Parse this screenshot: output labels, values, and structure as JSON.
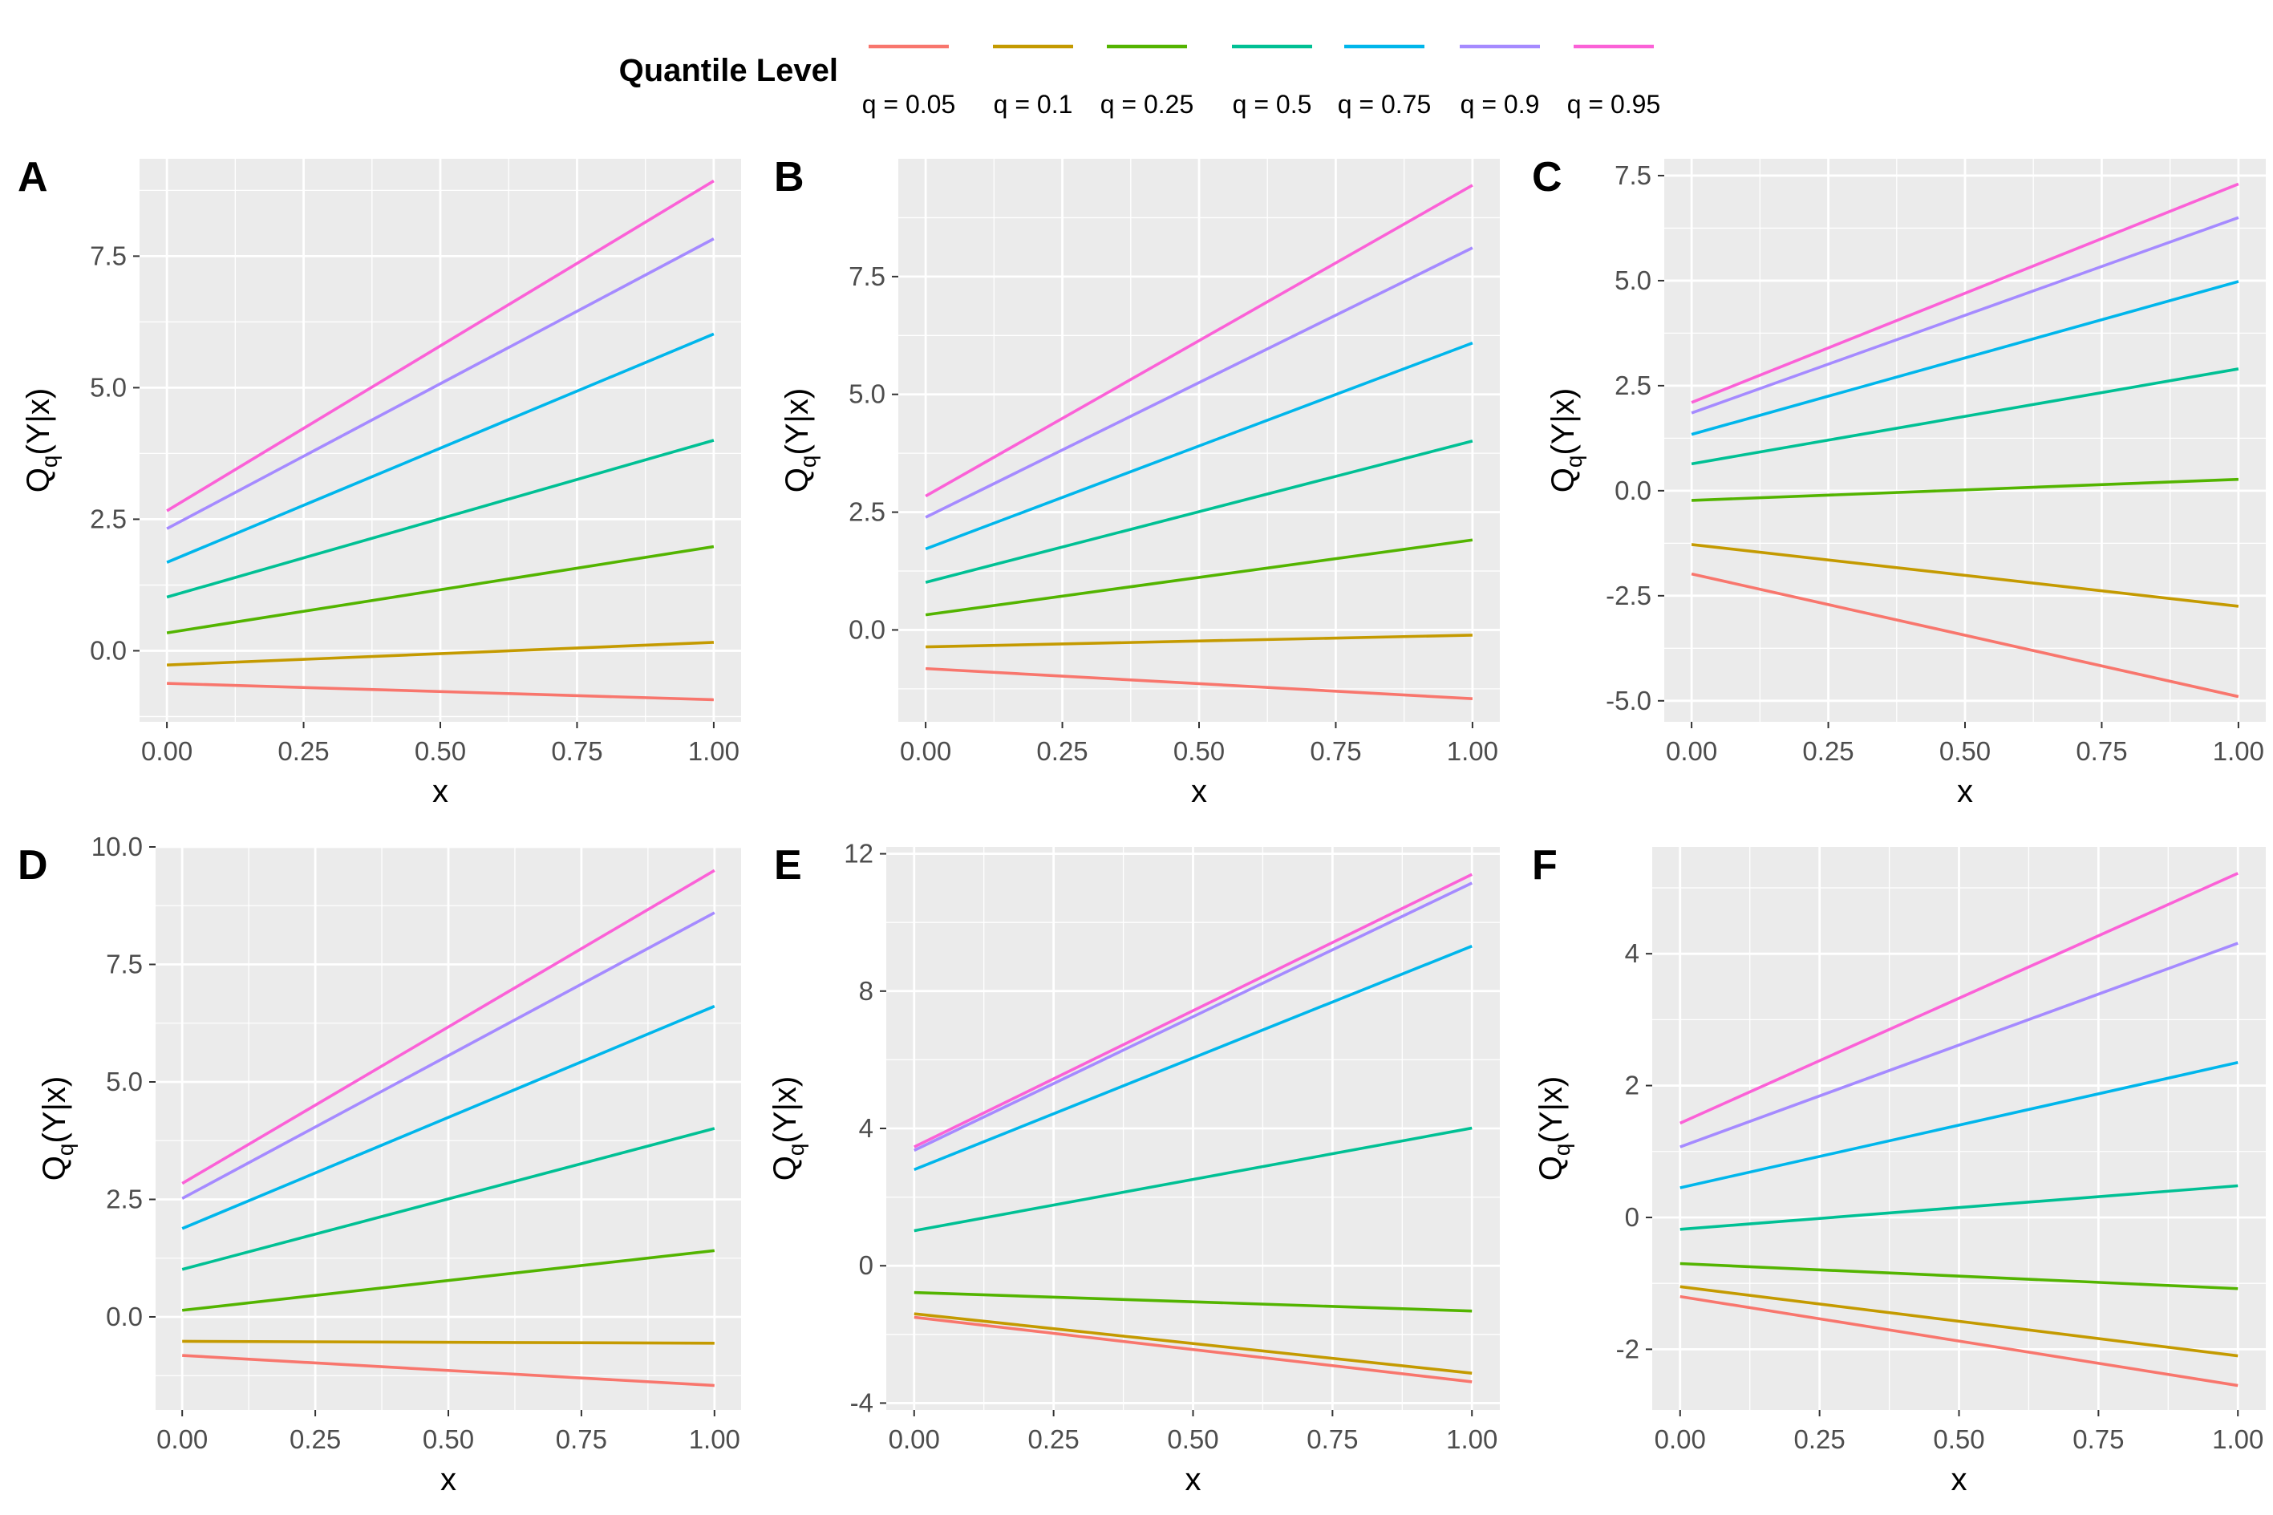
{
  "legend": {
    "title": "Quantile Level",
    "entries": [
      {
        "label": "q = 0.05",
        "color": "#F8766D"
      },
      {
        "label": "q = 0.1",
        "color": "#C49A00"
      },
      {
        "label": "q = 0.25",
        "color": "#53B400"
      },
      {
        "label": "q = 0.5",
        "color": "#00C094"
      },
      {
        "label": "q = 0.75",
        "color": "#00B6EB"
      },
      {
        "label": "q = 0.9",
        "color": "#A58AFF"
      },
      {
        "label": "q = 0.95",
        "color": "#FB61D7"
      }
    ]
  },
  "chart_data": [
    {
      "panel": "A",
      "type": "line",
      "xlabel": "x",
      "ylabel_main": "Q",
      "ylabel_sub": "q",
      "ylabel_rest": "(Y|x)",
      "xlim": [
        -0.05,
        1.05
      ],
      "ylim": [
        -1.35,
        9.35
      ],
      "xticks": [
        0,
        0.25,
        0.5,
        0.75,
        1
      ],
      "xtick_labels": [
        "0.00",
        "0.25",
        "0.50",
        "0.75",
        "1.00"
      ],
      "yticks": [
        0,
        2.5,
        5,
        7.5
      ],
      "ytick_labels": [
        "0.0",
        "2.5",
        "5.0",
        "7.5"
      ],
      "grid": true,
      "series": [
        {
          "name": "q = 0.05",
          "x": [
            0,
            1
          ],
          "y": [
            -0.62,
            -0.93
          ]
        },
        {
          "name": "q = 0.1",
          "x": [
            0,
            1
          ],
          "y": [
            -0.27,
            0.16
          ]
        },
        {
          "name": "q = 0.25",
          "x": [
            0,
            1
          ],
          "y": [
            0.34,
            1.98
          ]
        },
        {
          "name": "q = 0.5",
          "x": [
            0,
            1
          ],
          "y": [
            1.02,
            4.0
          ]
        },
        {
          "name": "q = 0.75",
          "x": [
            0,
            1
          ],
          "y": [
            1.68,
            6.02
          ]
        },
        {
          "name": "q = 0.9",
          "x": [
            0,
            1
          ],
          "y": [
            2.32,
            7.83
          ]
        },
        {
          "name": "q = 0.95",
          "x": [
            0,
            1
          ],
          "y": [
            2.66,
            8.93
          ]
        }
      ]
    },
    {
      "panel": "B",
      "type": "line",
      "xlabel": "x",
      "ylabel_main": "Q",
      "ylabel_sub": "q",
      "ylabel_rest": "(Y|x)",
      "xlim": [
        -0.05,
        1.05
      ],
      "ylim": [
        -1.95,
        10.0
      ],
      "xticks": [
        0,
        0.25,
        0.5,
        0.75,
        1
      ],
      "xtick_labels": [
        "0.00",
        "0.25",
        "0.50",
        "0.75",
        "1.00"
      ],
      "yticks": [
        0,
        2.5,
        5,
        7.5
      ],
      "ytick_labels": [
        "0.0",
        "2.5",
        "5.0",
        "7.5"
      ],
      "grid": true,
      "series": [
        {
          "name": "q = 0.05",
          "x": [
            0,
            1
          ],
          "y": [
            -0.82,
            -1.46
          ]
        },
        {
          "name": "q = 0.1",
          "x": [
            0,
            1
          ],
          "y": [
            -0.36,
            -0.11
          ]
        },
        {
          "name": "q = 0.25",
          "x": [
            0,
            1
          ],
          "y": [
            0.32,
            1.91
          ]
        },
        {
          "name": "q = 0.5",
          "x": [
            0,
            1
          ],
          "y": [
            1.01,
            4.01
          ]
        },
        {
          "name": "q = 0.75",
          "x": [
            0,
            1
          ],
          "y": [
            1.72,
            6.09
          ]
        },
        {
          "name": "q = 0.9",
          "x": [
            0,
            1
          ],
          "y": [
            2.39,
            8.11
          ]
        },
        {
          "name": "q = 0.95",
          "x": [
            0,
            1
          ],
          "y": [
            2.84,
            9.44
          ]
        }
      ]
    },
    {
      "panel": "C",
      "type": "line",
      "xlabel": "x",
      "ylabel_main": "Q",
      "ylabel_sub": "q",
      "ylabel_rest": "(Y|x)",
      "xlim": [
        -0.05,
        1.05
      ],
      "ylim": [
        -5.5,
        7.9
      ],
      "xticks": [
        0,
        0.25,
        0.5,
        0.75,
        1
      ],
      "xtick_labels": [
        "0.00",
        "0.25",
        "0.50",
        "0.75",
        "1.00"
      ],
      "yticks": [
        -5,
        -2.5,
        0,
        2.5,
        5,
        7.5
      ],
      "ytick_labels": [
        "-5.0",
        "-2.5",
        "0.0",
        "2.5",
        "5.0",
        "7.5"
      ],
      "grid": true,
      "series": [
        {
          "name": "q = 0.05",
          "x": [
            0,
            1
          ],
          "y": [
            -1.98,
            -4.9
          ]
        },
        {
          "name": "q = 0.1",
          "x": [
            0,
            1
          ],
          "y": [
            -1.28,
            -2.75
          ]
        },
        {
          "name": "q = 0.25",
          "x": [
            0,
            1
          ],
          "y": [
            -0.23,
            0.27
          ]
        },
        {
          "name": "q = 0.5",
          "x": [
            0,
            1
          ],
          "y": [
            0.64,
            2.9
          ]
        },
        {
          "name": "q = 0.75",
          "x": [
            0,
            1
          ],
          "y": [
            1.34,
            4.98
          ]
        },
        {
          "name": "q = 0.9",
          "x": [
            0,
            1
          ],
          "y": [
            1.85,
            6.5
          ]
        },
        {
          "name": "q = 0.95",
          "x": [
            0,
            1
          ],
          "y": [
            2.1,
            7.3
          ]
        }
      ]
    },
    {
      "panel": "D",
      "type": "line",
      "xlabel": "x",
      "ylabel_main": "Q",
      "ylabel_sub": "q",
      "ylabel_rest": "(Y|x)",
      "xlim": [
        -0.05,
        1.05
      ],
      "ylim": [
        -1.98,
        10.0
      ],
      "xticks": [
        0,
        0.25,
        0.5,
        0.75,
        1
      ],
      "xtick_labels": [
        "0.00",
        "0.25",
        "0.50",
        "0.75",
        "1.00"
      ],
      "yticks": [
        0,
        2.5,
        5,
        7.5,
        10
      ],
      "ytick_labels": [
        "0.0",
        "2.5",
        "5.0",
        "7.5",
        "10.0"
      ],
      "grid": true,
      "series": [
        {
          "name": "q = 0.05",
          "x": [
            0,
            1
          ],
          "y": [
            -0.82,
            -1.46
          ]
        },
        {
          "name": "q = 0.1",
          "x": [
            0,
            1
          ],
          "y": [
            -0.52,
            -0.56
          ]
        },
        {
          "name": "q = 0.25",
          "x": [
            0,
            1
          ],
          "y": [
            0.14,
            1.41
          ]
        },
        {
          "name": "q = 0.5",
          "x": [
            0,
            1
          ],
          "y": [
            1.01,
            4.01
          ]
        },
        {
          "name": "q = 0.75",
          "x": [
            0,
            1
          ],
          "y": [
            1.88,
            6.61
          ]
        },
        {
          "name": "q = 0.9",
          "x": [
            0,
            1
          ],
          "y": [
            2.52,
            8.6
          ]
        },
        {
          "name": "q = 0.95",
          "x": [
            0,
            1
          ],
          "y": [
            2.84,
            9.5
          ]
        }
      ]
    },
    {
      "panel": "E",
      "type": "line",
      "xlabel": "x",
      "ylabel_main": "Q",
      "ylabel_sub": "q",
      "ylabel_rest": "(Y|x)",
      "xlim": [
        -0.05,
        1.05
      ],
      "ylim": [
        -4.2,
        12.2
      ],
      "xticks": [
        0,
        0.25,
        0.5,
        0.75,
        1
      ],
      "xtick_labels": [
        "0.00",
        "0.25",
        "0.50",
        "0.75",
        "1.00"
      ],
      "yticks": [
        -4,
        0,
        4,
        8,
        12
      ],
      "ytick_labels": [
        "-4",
        "0",
        "4",
        "8",
        "12"
      ],
      "grid": true,
      "series": [
        {
          "name": "q = 0.05",
          "x": [
            0,
            1
          ],
          "y": [
            -1.5,
            -3.38
          ]
        },
        {
          "name": "q = 0.1",
          "x": [
            0,
            1
          ],
          "y": [
            -1.4,
            -3.13
          ]
        },
        {
          "name": "q = 0.25",
          "x": [
            0,
            1
          ],
          "y": [
            -0.78,
            -1.32
          ]
        },
        {
          "name": "q = 0.5",
          "x": [
            0,
            1
          ],
          "y": [
            1.02,
            4.01
          ]
        },
        {
          "name": "q = 0.75",
          "x": [
            0,
            1
          ],
          "y": [
            2.8,
            9.31
          ]
        },
        {
          "name": "q = 0.9",
          "x": [
            0,
            1
          ],
          "y": [
            3.36,
            11.15
          ]
        },
        {
          "name": "q = 0.95",
          "x": [
            0,
            1
          ],
          "y": [
            3.46,
            11.4
          ]
        }
      ]
    },
    {
      "panel": "F",
      "type": "line",
      "xlabel": "x",
      "ylabel_main": "Q",
      "ylabel_sub": "q",
      "ylabel_rest": "(Y|x)",
      "xlim": [
        -0.05,
        1.05
      ],
      "ylim": [
        -2.92,
        5.62
      ],
      "xticks": [
        0,
        0.25,
        0.5,
        0.75,
        1
      ],
      "xtick_labels": [
        "0.00",
        "0.25",
        "0.50",
        "0.75",
        "1.00"
      ],
      "yticks": [
        -2,
        0,
        2,
        4
      ],
      "ytick_labels": [
        "-2",
        "0",
        "2",
        "4"
      ],
      "grid": true,
      "series": [
        {
          "name": "q = 0.05",
          "x": [
            0,
            1
          ],
          "y": [
            -1.2,
            -2.55
          ]
        },
        {
          "name": "q = 0.1",
          "x": [
            0,
            1
          ],
          "y": [
            -1.05,
            -2.1
          ]
        },
        {
          "name": "q = 0.25",
          "x": [
            0,
            1
          ],
          "y": [
            -0.7,
            -1.08
          ]
        },
        {
          "name": "q = 0.5",
          "x": [
            0,
            1
          ],
          "y": [
            -0.18,
            0.48
          ]
        },
        {
          "name": "q = 0.75",
          "x": [
            0,
            1
          ],
          "y": [
            0.45,
            2.35
          ]
        },
        {
          "name": "q = 0.9",
          "x": [
            0,
            1
          ],
          "y": [
            1.07,
            4.16
          ]
        },
        {
          "name": "q = 0.95",
          "x": [
            0,
            1
          ],
          "y": [
            1.43,
            5.22
          ]
        }
      ]
    }
  ]
}
